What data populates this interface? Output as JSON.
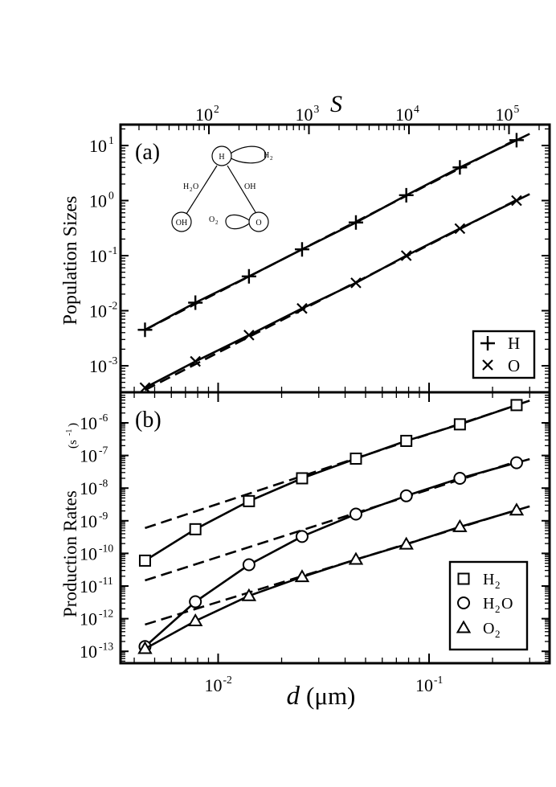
{
  "chart_data": [
    {
      "type": "scatter",
      "panel_label": "(a)",
      "ylabel": "Population Sizes",
      "top_axis_label": "S",
      "top_ticks": [
        "10",
        "10",
        "10",
        "10",
        "10"
      ],
      "top_tick_exponents": [
        "2",
        "3",
        "4",
        "5",
        ""
      ],
      "y_scale": "log",
      "y_ticks": [
        "10",
        "10",
        "10",
        "10",
        "10"
      ],
      "y_tick_exponents": [
        "1",
        "0",
        "-1",
        "-2",
        "-3"
      ],
      "legend_position": "bottom-right",
      "legend": [
        {
          "marker": "+",
          "label": "H"
        },
        {
          "marker": "×",
          "label": "O"
        }
      ],
      "x": [
        0.0045,
        0.0078,
        0.014,
        0.025,
        0.045,
        0.078,
        0.14,
        0.26
      ],
      "series": [
        {
          "name": "H",
          "marker": "plus",
          "values": [
            0.0045,
            0.014,
            0.042,
            0.13,
            0.4,
            1.25,
            4.0,
            12.5
          ]
        },
        {
          "name": "O",
          "marker": "cross",
          "values": [
            0.0004,
            0.0012,
            0.0036,
            0.011,
            0.032,
            0.1,
            0.31,
            1.0
          ]
        }
      ],
      "inset": {
        "nodes": [
          "H",
          "OH",
          "O"
        ],
        "loop_labels": [
          "H",
          "O"
        ],
        "loop_subscripts": [
          "2",
          "2"
        ],
        "edge_labels": [
          {
            "text": "H",
            "sub": "2",
            "post": "O"
          },
          {
            "text": "OH",
            "sub": "",
            "post": ""
          }
        ]
      }
    },
    {
      "type": "scatter",
      "panel_label": "(b)",
      "ylabel": "Production Rates",
      "ylabel_unit": "(s",
      "ylabel_unit_exp": "-1",
      "ylabel_unit_close": ")",
      "xlabel": "d",
      "xlabel_unit": "(μm)",
      "x_scale": "log",
      "x_ticks": [
        "10",
        "10"
      ],
      "x_tick_exponents": [
        "-2",
        "-1"
      ],
      "y_scale": "log",
      "y_ticks": [
        "10",
        "10",
        "10",
        "10",
        "10",
        "10",
        "10",
        "10"
      ],
      "y_tick_exponents": [
        "-6",
        "-7",
        "-8",
        "-9",
        "-10",
        "-11",
        "-12",
        "-13"
      ],
      "legend_position": "bottom-right",
      "legend": [
        {
          "marker": "square",
          "label": "H",
          "sub": "2",
          "post": ""
        },
        {
          "marker": "circle",
          "label": "H",
          "sub": "2",
          "post": "O"
        },
        {
          "marker": "triangle",
          "label": "O",
          "sub": "2",
          "post": ""
        }
      ],
      "x": [
        0.0045,
        0.0078,
        0.014,
        0.025,
        0.045,
        0.078,
        0.14,
        0.26
      ],
      "series": [
        {
          "name": "H2",
          "marker": "square",
          "values": [
            6e-11,
            5.5e-10,
            4e-09,
            2e-08,
            8e-08,
            2.8e-07,
            9e-07,
            3.5e-06
          ]
        },
        {
          "name": "H2O",
          "marker": "circle",
          "values": [
            1.4e-13,
            3.3e-12,
            4.5e-11,
            3.3e-10,
            1.6e-09,
            5.8e-09,
            2e-08,
            6e-08
          ]
        },
        {
          "name": "O2",
          "marker": "triangle",
          "values": [
            1.2e-13,
            8.5e-13,
            5e-12,
            1.9e-11,
            6.5e-11,
            1.9e-10,
            6.5e-10,
            2.1e-09
          ]
        }
      ]
    }
  ]
}
